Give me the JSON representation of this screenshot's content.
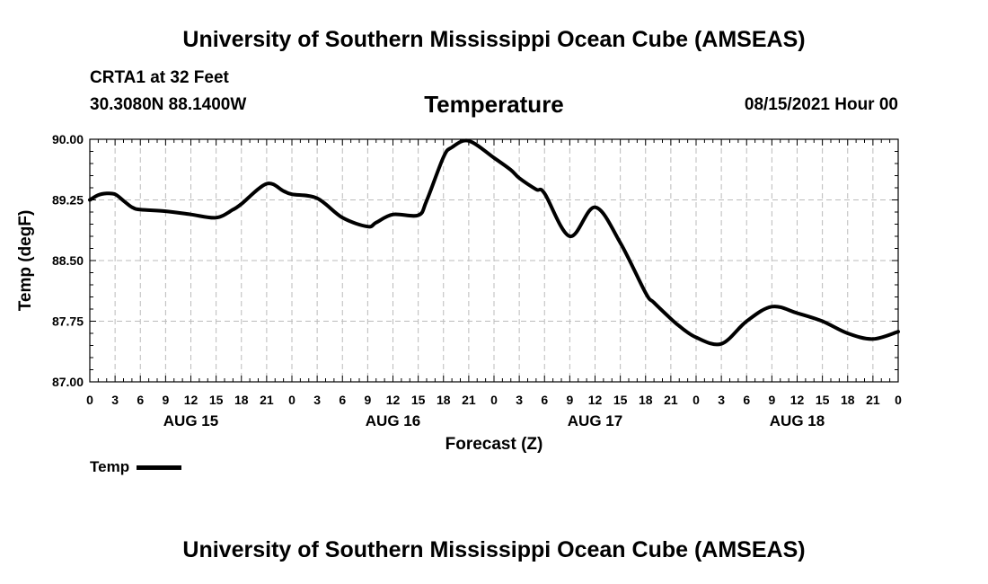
{
  "header": {
    "title": "University of Southern Mississippi Ocean Cube (AMSEAS)",
    "station": "CRTA1 at 32 Feet",
    "coords": "30.3080N  88.1400W",
    "chart_title": "Temperature",
    "date": "08/15/2021 Hour 00"
  },
  "footer": {
    "title": "University of Southern Mississippi Ocean Cube (AMSEAS)"
  },
  "legend": {
    "label": "Temp"
  },
  "colors": {
    "line": "#000000",
    "grid": "#bbbbbb",
    "axis": "#000000"
  },
  "chart_data": {
    "type": "line",
    "title": "Temperature",
    "xlabel": "Forecast (Z)",
    "ylabel": "Temp (degF)",
    "xlim": [
      0,
      96
    ],
    "ylim": [
      87.0,
      90.0
    ],
    "grid": true,
    "legend_position": "bottom-left",
    "x_ticks": [
      0,
      3,
      6,
      9,
      12,
      15,
      18,
      21,
      24,
      27,
      30,
      33,
      36,
      39,
      42,
      45,
      48,
      51,
      54,
      57,
      60,
      63,
      66,
      69,
      72,
      75,
      78,
      81,
      84,
      87,
      90,
      93,
      96
    ],
    "x_tick_labels": [
      "0",
      "3",
      "6",
      "9",
      "12",
      "15",
      "18",
      "21",
      "0",
      "3",
      "6",
      "9",
      "12",
      "15",
      "18",
      "21",
      "0",
      "3",
      "6",
      "9",
      "12",
      "15",
      "18",
      "21",
      "0",
      "3",
      "6",
      "9",
      "12",
      "15",
      "18",
      "21",
      "0"
    ],
    "day_labels": [
      {
        "x": 12,
        "label": "AUG 15"
      },
      {
        "x": 36,
        "label": "AUG 16"
      },
      {
        "x": 60,
        "label": "AUG 17"
      },
      {
        "x": 84,
        "label": "AUG 18"
      }
    ],
    "y_ticks": [
      87.0,
      87.75,
      88.5,
      89.25,
      90.0
    ],
    "y_tick_labels": [
      "87.00",
      "87.75",
      "88.50",
      "89.25",
      "90.00"
    ],
    "series": [
      {
        "name": "Temp",
        "x": [
          0,
          1,
          2,
          3,
          4,
          5,
          6,
          9,
          12,
          15,
          17,
          18,
          21,
          23,
          24,
          27,
          30,
          33,
          34,
          36,
          39,
          40,
          42,
          43,
          45,
          48,
          50,
          51,
          53,
          54,
          57,
          60,
          63,
          66,
          67,
          69,
          70,
          72,
          75,
          78,
          81,
          84,
          87,
          90,
          93,
          96
        ],
        "y": [
          89.25,
          89.31,
          89.33,
          89.32,
          89.24,
          89.16,
          89.13,
          89.11,
          89.07,
          89.03,
          89.13,
          89.2,
          89.45,
          89.36,
          89.32,
          89.27,
          89.03,
          88.92,
          88.97,
          89.07,
          89.06,
          89.24,
          89.78,
          89.9,
          89.98,
          89.77,
          89.62,
          89.52,
          89.38,
          89.33,
          88.8,
          89.16,
          88.72,
          88.1,
          87.98,
          87.78,
          87.69,
          87.55,
          87.47,
          87.75,
          87.93,
          87.85,
          87.75,
          87.6,
          87.53,
          87.62
        ]
      }
    ]
  }
}
